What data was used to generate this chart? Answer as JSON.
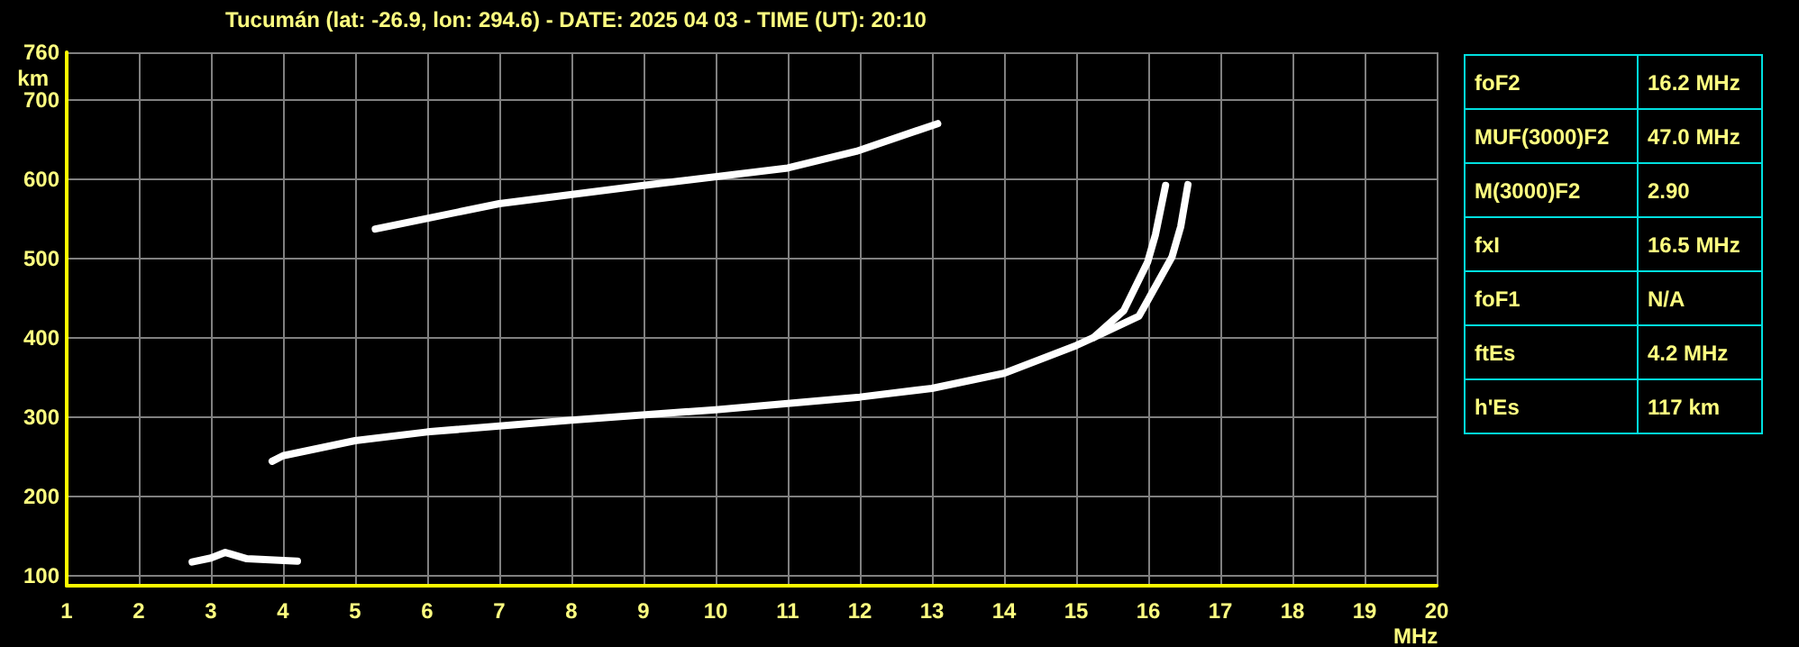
{
  "chart_data": {
    "type": "line",
    "title": "Tucumán (lat: -26.9, lon: 294.6) - DATE: 2025 04 03 - TIME (UT): 20:10",
    "xlabel": "MHz",
    "ylabel": "km",
    "xlim": [
      1,
      20
    ],
    "xticks": [
      1,
      2,
      3,
      4,
      5,
      6,
      7,
      8,
      9,
      10,
      11,
      12,
      13,
      14,
      15,
      16,
      17,
      18,
      19,
      20
    ],
    "ylim": [
      87,
      760
    ],
    "yticks": [
      100,
      200,
      300,
      400,
      500,
      600,
      700,
      760
    ],
    "grid": true,
    "marker": "none",
    "line_style": "solid",
    "series": [
      {
        "color": "#ffffff",
        "x": [
          2.74,
          3.0,
          3.2,
          3.5,
          4.2
        ],
        "values": [
          117,
          122,
          129,
          121,
          118
        ]
      },
      {
        "color": "#ffffff",
        "x": [
          3.85,
          4,
          5,
          6,
          8,
          10,
          12,
          13,
          14,
          15,
          15.24,
          15.66,
          15.99,
          16.1,
          16.24
        ],
        "values": [
          244,
          251,
          270,
          281,
          296,
          309,
          325,
          336,
          355,
          390,
          400,
          434,
          495,
          530,
          592
        ]
      },
      {
        "color": "#ffffff",
        "x": [
          15.24,
          15.87,
          16.33,
          16.45,
          16.55
        ],
        "values": [
          400,
          427,
          502,
          540,
          593
        ]
      },
      {
        "color": "#ffffff",
        "x": [
          5.28,
          7,
          9,
          11,
          11.95,
          13.08
        ],
        "values": [
          537,
          569,
          592,
          614,
          635,
          670
        ]
      }
    ],
    "annotations": [
      "foF2",
      "16.2 MHz",
      "MUF(3000)F2",
      "47.0 MHz",
      "M(3000)F2",
      "2.90",
      "fxI",
      "16.5 MHz",
      "foF1",
      "N/A",
      "ftEs",
      "4.2 MHz",
      "h'Es",
      "117 km"
    ]
  }
}
